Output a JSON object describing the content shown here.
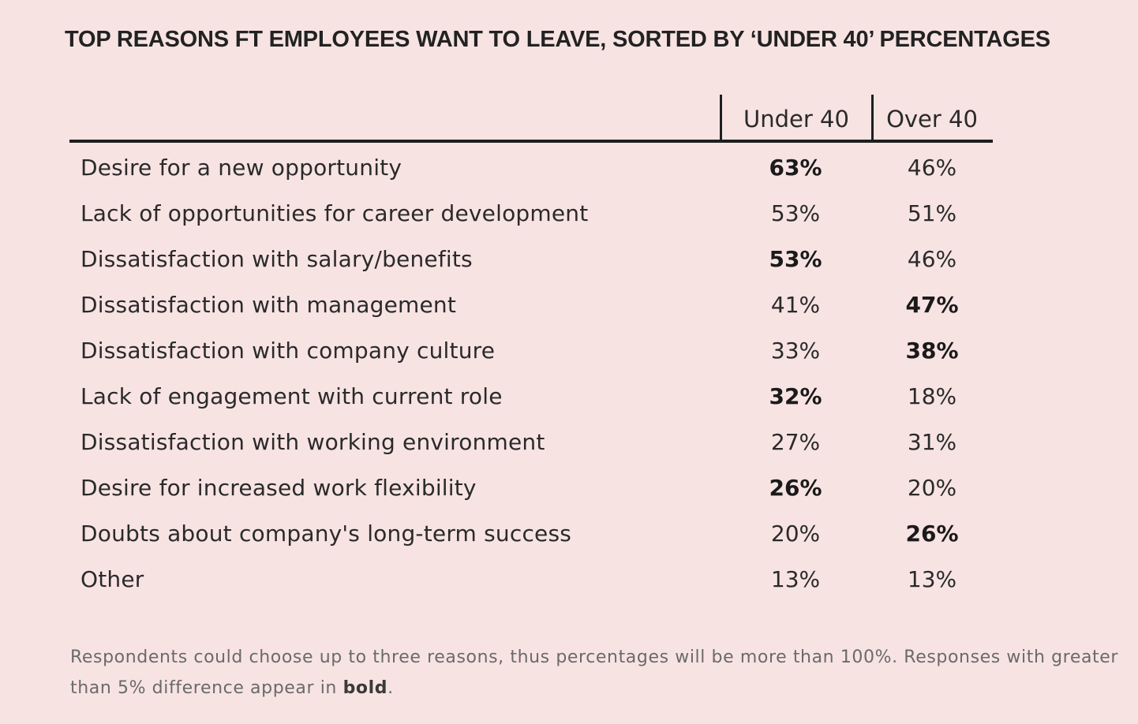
{
  "chart_data": {
    "type": "table",
    "title": "TOP REASONS FT EMPLOYEES WANT TO LEAVE, SORTED BY ‘UNDER 40’ PERCENTAGES",
    "columns": [
      "Under 40",
      "Over 40"
    ],
    "rows": [
      {
        "reason": "Desire for a new opportunity",
        "under40": "63%",
        "over40": "46%",
        "under40_bold": true,
        "over40_bold": false
      },
      {
        "reason": "Lack of opportunities for career development",
        "under40": "53%",
        "over40": "51%",
        "under40_bold": false,
        "over40_bold": false
      },
      {
        "reason": "Dissatisfaction with salary/benefits",
        "under40": "53%",
        "over40": "46%",
        "under40_bold": true,
        "over40_bold": false
      },
      {
        "reason": "Dissatisfaction with management",
        "under40": "41%",
        "over40": "47%",
        "under40_bold": false,
        "over40_bold": true
      },
      {
        "reason": "Dissatisfaction with company culture",
        "under40": "33%",
        "over40": "38%",
        "under40_bold": false,
        "over40_bold": true
      },
      {
        "reason": "Lack of engagement with current role",
        "under40": "32%",
        "over40": "18%",
        "under40_bold": true,
        "over40_bold": false
      },
      {
        "reason": "Dissatisfaction with working environment",
        "under40": "27%",
        "over40": "31%",
        "under40_bold": false,
        "over40_bold": false
      },
      {
        "reason": "Desire for increased work flexibility",
        "under40": "26%",
        "over40": "20%",
        "under40_bold": true,
        "over40_bold": false
      },
      {
        "reason": "Doubts about company's long-term success",
        "under40": "20%",
        "over40": "26%",
        "under40_bold": false,
        "over40_bold": true
      },
      {
        "reason": "Other",
        "under40": "13%",
        "over40": "13%",
        "under40_bold": false,
        "over40_bold": false
      }
    ]
  },
  "footnote": {
    "text_before": "Respondents could choose up to three reasons, thus percentages will be more than 100%. Responses with greater than 5% difference appear in ",
    "bold_word": "bold",
    "text_after": "."
  },
  "colors": {
    "background": "#f8e3e3",
    "text": "#2a2a2a",
    "rule": "#1f1f1f",
    "footnote": "#6a6a6a"
  }
}
